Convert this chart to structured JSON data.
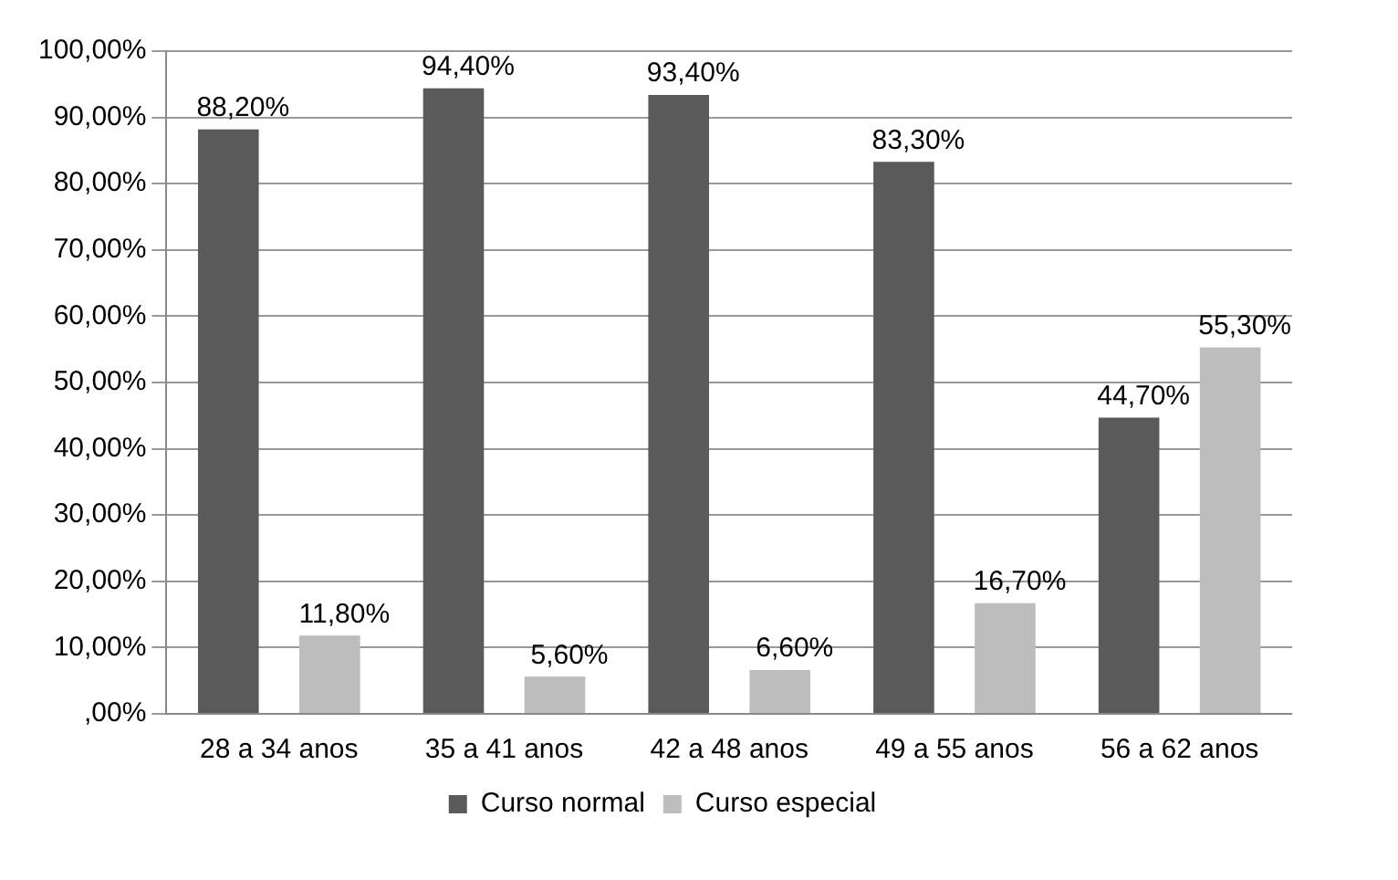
{
  "chart_data": {
    "type": "bar",
    "categories": [
      "28 a 34 anos",
      "35 a 41 anos",
      "42 a 48 anos",
      "49 a 55 anos",
      "56 a 62 anos"
    ],
    "series": [
      {
        "name": "Curso normal",
        "color": "#5a5a5a",
        "values": [
          88.2,
          94.4,
          93.4,
          83.3,
          44.7
        ],
        "value_labels": [
          "88,20%",
          "94,40%",
          "93,40%",
          "83,30%",
          "44,70%"
        ]
      },
      {
        "name": "Curso especial",
        "color": "#bdbdbd",
        "values": [
          11.8,
          5.6,
          6.6,
          16.7,
          55.3
        ],
        "value_labels": [
          "11,80%",
          "5,60%",
          "6,60%",
          "16,70%",
          "55,30%"
        ]
      }
    ],
    "ylim": [
      0,
      100
    ],
    "yticks": [
      {
        "value": 0,
        "label": ",00%"
      },
      {
        "value": 10,
        "label": "10,00%"
      },
      {
        "value": 20,
        "label": "20,00%"
      },
      {
        "value": 30,
        "label": "30,00%"
      },
      {
        "value": 40,
        "label": "40,00%"
      },
      {
        "value": 50,
        "label": "50,00%"
      },
      {
        "value": 60,
        "label": "60,00%"
      },
      {
        "value": 70,
        "label": "70,00%"
      },
      {
        "value": 80,
        "label": "80,00%"
      },
      {
        "value": 90,
        "label": "90,00%"
      },
      {
        "value": 100,
        "label": "100,00%"
      }
    ],
    "grid": "y",
    "legend": "bottom"
  }
}
